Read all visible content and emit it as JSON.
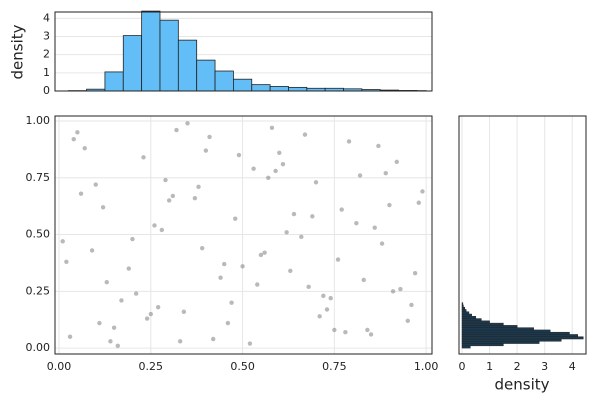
{
  "chart_data": [
    {
      "type": "scatter",
      "color": "#808080",
      "x": [
        0.03,
        0.12,
        0.27,
        0.41,
        0.55,
        0.68,
        0.82,
        0.95,
        0.07,
        0.19,
        0.33,
        0.48,
        0.61,
        0.74,
        0.88,
        0.99,
        0.15,
        0.29,
        0.44,
        0.58,
        0.71,
        0.86,
        0.02,
        0.23,
        0.37,
        0.52,
        0.66,
        0.79,
        0.93,
        0.1,
        0.25,
        0.39,
        0.53,
        0.69,
        0.84,
        0.97,
        0.05,
        0.17,
        0.31,
        0.46,
        0.6,
        0.76,
        0.9,
        0.13,
        0.28,
        0.42,
        0.57,
        0.73,
        0.87,
        0.01,
        0.21,
        0.35,
        0.5,
        0.64,
        0.78,
        0.92,
        0.09,
        0.24,
        0.38,
        0.54,
        0.67,
        0.81,
        0.96,
        0.16,
        0.3,
        0.45,
        0.59,
        0.72,
        0.85,
        0.04,
        0.2,
        0.34,
        0.49,
        0.63,
        0.77,
        0.91,
        0.11,
        0.26,
        0.4,
        0.56,
        0.7,
        0.83,
        0.98,
        0.14,
        0.32,
        0.47,
        0.62,
        0.75,
        0.89,
        0.06
      ],
      "y": [
        0.05,
        0.62,
        0.18,
        0.93,
        0.41,
        0.27,
        0.76,
        0.12,
        0.88,
        0.35,
        0.03,
        0.57,
        0.81,
        0.22,
        0.46,
        0.69,
        0.09,
        0.74,
        0.31,
        0.97,
        0.14,
        0.53,
        0.38,
        0.84,
        0.66,
        0.02,
        0.49,
        0.91,
        0.26,
        0.72,
        0.15,
        0.44,
        0.79,
        0.58,
        0.08,
        0.33,
        0.95,
        0.21,
        0.67,
        0.11,
        0.86,
        0.39,
        0.63,
        0.29,
        0.52,
        0.04,
        0.75,
        0.17,
        0.89,
        0.47,
        0.24,
        0.99,
        0.36,
        0.59,
        0.07,
        0.82,
        0.43,
        0.13,
        0.71,
        0.28,
        0.94,
        0.55,
        0.19,
        0.01,
        0.65,
        0.37,
        0.78,
        0.23,
        0.06,
        0.92,
        0.48,
        0.16,
        0.85,
        0.34,
        0.61,
        0.25,
        0.11,
        0.54,
        0.87,
        0.42,
        0.73,
        0.3,
        0.64,
        0.03,
        0.96,
        0.2,
        0.51,
        0.08,
        0.77,
        0.68
      ],
      "xlim": [
        -0.011,
        1.016
      ],
      "ylim": [
        -0.026,
        1.022
      ],
      "xticks": [
        {
          "value": 0,
          "label": "0.00"
        },
        {
          "value": 0.25,
          "label": "0.25"
        },
        {
          "value": 0.5,
          "label": "0.50"
        },
        {
          "value": 0.75,
          "label": "0.75"
        },
        {
          "value": 1,
          "label": "1.00"
        }
      ],
      "yticks": [
        {
          "value": 0,
          "label": "0.00"
        },
        {
          "value": 0.25,
          "label": "0.25"
        },
        {
          "value": 0.5,
          "label": "0.50"
        },
        {
          "value": 0.75,
          "label": "0.75"
        },
        {
          "value": 1,
          "label": "1.00"
        }
      ],
      "grid": true
    },
    {
      "type": "histogram",
      "orientation": "vertical",
      "color": "#63bdf6",
      "ylabel": "density",
      "bins": [
        0.025,
        0.075,
        0.125,
        0.175,
        0.225,
        0.275,
        0.325,
        0.375,
        0.425,
        0.475,
        0.525,
        0.575,
        0.625,
        0.675,
        0.725,
        0.775,
        0.825,
        0.875,
        0.925,
        0.975,
        1.0
      ],
      "values": [
        0.02,
        0.1,
        1.05,
        3.05,
        4.4,
        3.9,
        2.8,
        1.7,
        1.1,
        0.65,
        0.35,
        0.25,
        0.2,
        0.15,
        0.15,
        0.12,
        0.08,
        0.05,
        0.03,
        0.02
      ],
      "xlim": [
        -0.011,
        1.016
      ],
      "ylim": [
        0,
        4.35
      ],
      "yticks": [
        0,
        1,
        2,
        3,
        4
      ],
      "grid": true
    },
    {
      "type": "histogram",
      "orientation": "horizontal",
      "color": "#1b3a50",
      "xlabel": "density",
      "bins": [
        0,
        0.01,
        0.02,
        0.03,
        0.04,
        0.05,
        0.06,
        0.07,
        0.08,
        0.09,
        0.1,
        0.11,
        0.12,
        0.13,
        0.14,
        0.15,
        0.16,
        0.17,
        0.18,
        0.19,
        0.2
      ],
      "values": [
        0.3,
        1.5,
        2.8,
        3.6,
        4.4,
        4.2,
        3.9,
        3.2,
        2.6,
        2.0,
        1.5,
        1.0,
        0.7,
        0.5,
        0.35,
        0.25,
        0.15,
        0.1,
        0.05,
        0.03
      ],
      "xlim": [
        -0.11,
        4.5
      ],
      "ylim": [
        -0.026,
        1.022
      ],
      "xticks": [
        0,
        1,
        2,
        3,
        4
      ],
      "grid": true
    }
  ]
}
